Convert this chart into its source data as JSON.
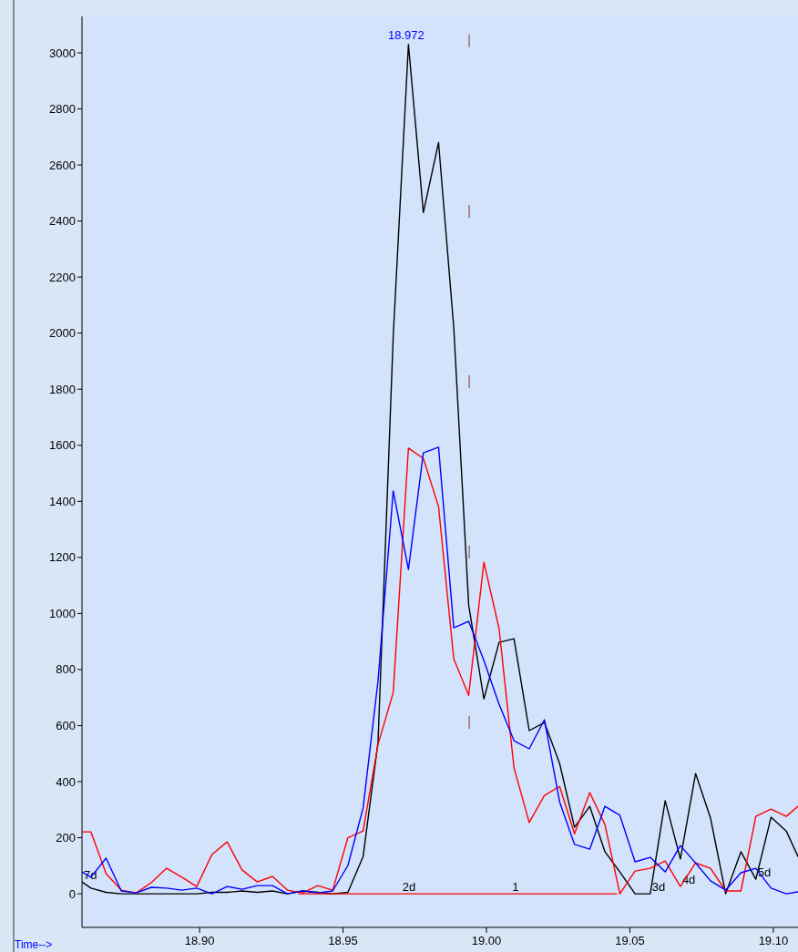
{
  "chart_data": {
    "type": "line",
    "xlabel": "Time-->",
    "xlim": [
      18.859,
      19.1086
    ],
    "ylim": [
      -120,
      3130
    ],
    "xticks": [
      {
        "value": 18.9,
        "label": "18.90"
      },
      {
        "value": 18.95,
        "label": "18.95"
      },
      {
        "value": 19.0,
        "label": "19.00"
      },
      {
        "value": 19.05,
        "label": "19.05"
      },
      {
        "value": 19.1,
        "label": "19.10"
      }
    ],
    "yticks": [
      0,
      200,
      400,
      600,
      800,
      1000,
      1200,
      1400,
      1600,
      1800,
      2000,
      2200,
      2400,
      2600,
      2800,
      3000
    ],
    "grid": false,
    "marker": "none",
    "line_style": "solid",
    "series": [
      {
        "color": "#000000",
        "x": [
          18.859,
          18.8621,
          18.8674,
          18.8727,
          18.8779,
          18.8832,
          18.8885,
          18.8938,
          18.899,
          18.9043,
          18.9096,
          18.9148,
          18.9201,
          18.9254,
          18.9306,
          18.9359,
          18.9412,
          18.9464,
          18.9517,
          18.957,
          18.9622,
          18.9675,
          18.9728,
          18.978,
          18.9833,
          18.9886,
          18.9938,
          18.9991,
          19.0044,
          19.0096,
          19.0149,
          19.0202,
          19.0255,
          19.0307,
          19.036,
          19.0413,
          19.0465,
          19.0518,
          19.0571,
          19.0623,
          19.0676,
          19.0729,
          19.0781,
          19.0834,
          19.0887,
          19.0939,
          19.0992,
          19.1045,
          19.1086
        ],
        "values": [
          42,
          20,
          5,
          0,
          0,
          0,
          0,
          0,
          0,
          5,
          5,
          10,
          5,
          10,
          0,
          10,
          5,
          0,
          5,
          133,
          540,
          1990,
          3030,
          2430,
          2680,
          2020,
          1030,
          695,
          897,
          910,
          582,
          611,
          465,
          237,
          312,
          150,
          78,
          0,
          0,
          332,
          124,
          429,
          270,
          0,
          150,
          52,
          273,
          224,
          133
        ]
      },
      {
        "color": "#ff0000",
        "x": [
          18.859,
          18.8621,
          18.8674,
          18.8727,
          18.8779,
          18.8832,
          18.8885,
          18.8938,
          18.899,
          18.9043,
          18.9096,
          18.9148,
          18.9201,
          18.9254,
          18.9306,
          18.9359,
          18.9412,
          18.9464,
          18.9517,
          18.957,
          18.9622,
          18.9675,
          18.9728,
          18.978,
          18.9833,
          18.9886,
          18.9938,
          18.9991,
          19.0044,
          19.0096,
          19.0149,
          19.0202,
          19.0255,
          19.0307,
          19.036,
          19.0413,
          19.0465,
          19.0518,
          19.0571,
          19.0623,
          19.0676,
          19.0729,
          19.0781,
          19.0834,
          19.0887,
          19.0939,
          19.0992,
          19.1045,
          19.1086
        ],
        "values": [
          221,
          221,
          72,
          13,
          3,
          40,
          91,
          59,
          26,
          140,
          185,
          85,
          42,
          62,
          13,
          3,
          29,
          13,
          200,
          224,
          533,
          718,
          1590,
          1553,
          1381,
          838,
          708,
          1183,
          946,
          449,
          254,
          351,
          383,
          214,
          361,
          247,
          0,
          81,
          91,
          117,
          26,
          110,
          91,
          10,
          10,
          276,
          302,
          276,
          312
        ]
      },
      {
        "color": "#0000ff",
        "x": [
          18.859,
          18.8621,
          18.8674,
          18.8727,
          18.8779,
          18.8832,
          18.8885,
          18.8938,
          18.899,
          18.9043,
          18.9096,
          18.9148,
          18.9201,
          18.9254,
          18.9306,
          18.9359,
          18.9412,
          18.9464,
          18.9517,
          18.957,
          18.9622,
          18.9675,
          18.9728,
          18.978,
          18.9833,
          18.9886,
          18.9938,
          18.9991,
          19.0044,
          19.0096,
          19.0149,
          19.0202,
          19.0255,
          19.0307,
          19.036,
          19.0413,
          19.0465,
          19.0518,
          19.0571,
          19.0623,
          19.0676,
          19.0729,
          19.0781,
          19.0834,
          19.0887,
          19.0939,
          19.0992,
          19.1045,
          19.1086
        ],
        "values": [
          78,
          59,
          127,
          10,
          3,
          23,
          20,
          13,
          20,
          0,
          26,
          16,
          29,
          29,
          0,
          10,
          3,
          10,
          101,
          306,
          760,
          1437,
          1157,
          1573,
          1593,
          949,
          972,
          832,
          676,
          546,
          517,
          621,
          328,
          176,
          159,
          312,
          280,
          114,
          130,
          78,
          172,
          110,
          46,
          13,
          75,
          91,
          20,
          0,
          7
        ]
      },
      {
        "color": "#ff0000",
        "x": [
          18.9346,
          19.0454
        ],
        "values": [
          0,
          0
        ]
      }
    ],
    "ref_lines": [
      {
        "axis": "x",
        "value": 18.994,
        "color": "#a07070",
        "line_style": "dashed"
      }
    ],
    "annotations": [
      {
        "text": "18.972",
        "x": 18.972,
        "y": 3030
      },
      {
        "text": "7d",
        "x": 18.859,
        "y": 42
      },
      {
        "text": "2d",
        "x": 18.9701,
        "y": 0
      },
      {
        "text": "1",
        "x": 19.0083,
        "y": 0
      },
      {
        "text": "3d",
        "x": 19.0571,
        "y": 0
      },
      {
        "text": "4d",
        "x": 19.0676,
        "y": 26
      },
      {
        "text": "5d",
        "x": 19.0939,
        "y": 52
      }
    ]
  }
}
